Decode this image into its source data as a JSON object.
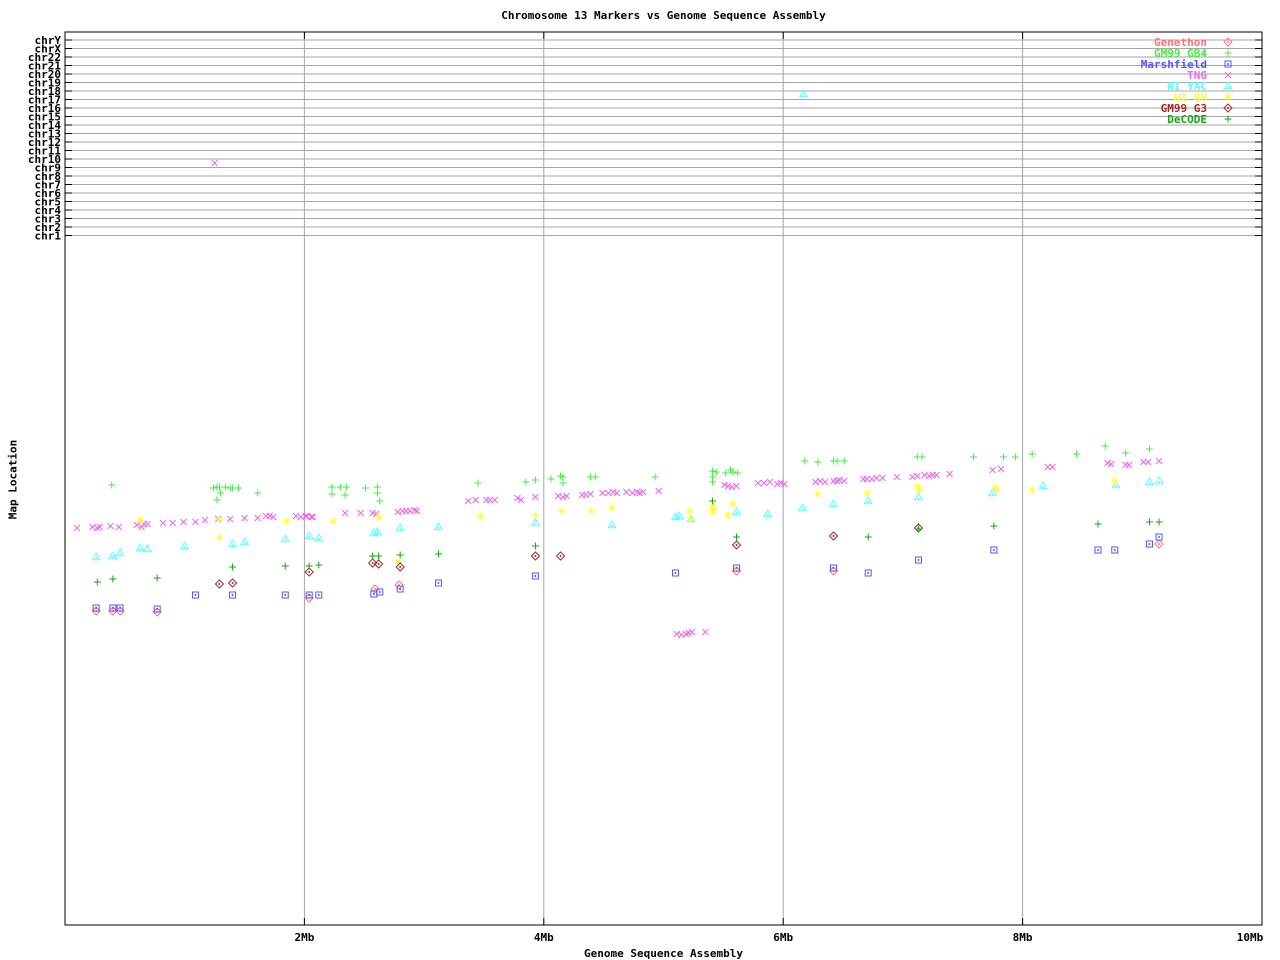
{
  "title": "Chromosome 13 Markers vs Genome Sequence Assembly",
  "chart_data": {
    "type": "scatter",
    "title": "Chromosome 13 Markers vs Genome Sequence Assembly",
    "xlabel": "Genome Sequence Assembly",
    "ylabel": "Map Location",
    "x_axis": {
      "range_mb": [
        0,
        10
      ],
      "ticks": [
        {
          "value": 2,
          "label": "2Mb"
        },
        {
          "value": 4,
          "label": "4Mb"
        },
        {
          "value": 6,
          "label": "6Mb"
        },
        {
          "value": 8,
          "label": "8Mb"
        },
        {
          "value": 10,
          "label": "10Mb"
        }
      ],
      "gridlines_at": [
        2,
        4,
        6,
        8
      ]
    },
    "y_axis": {
      "numeric_scale_shown": false,
      "chromosome_rows": [
        "chrY",
        "chrX",
        "chr22",
        "chr21",
        "chr20",
        "chr19",
        "chr18",
        "chr17",
        "chr16",
        "chr15",
        "chr14",
        "chr13",
        "chr12",
        "chr11",
        "chr10",
        "chr9",
        "chr8",
        "chr7",
        "chr6",
        "chr5",
        "chr4",
        "chr3",
        "chr2",
        "chr1"
      ]
    },
    "legend": {
      "position": "top-right-inside",
      "entries": [
        "Genethon",
        "GM99 GB4",
        "Marshfield",
        "TNG",
        "WI YAC",
        "WI RH",
        "GM99 G3",
        "DeCODE"
      ]
    },
    "grid": true,
    "point_format": "[x_Mb, y_screen_px]",
    "series": [
      {
        "name": "Genethon",
        "marker": "open-diamond",
        "color": "#ff7373",
        "points": [
          [
            0.26,
            611
          ],
          [
            0.4,
            611
          ],
          [
            0.46,
            611
          ],
          [
            0.77,
            612
          ],
          [
            2.04,
            598
          ],
          [
            2.59,
            589
          ],
          [
            2.79,
            585
          ],
          [
            5.61,
            571
          ],
          [
            6.42,
            571
          ],
          [
            9.14,
            544
          ]
        ]
      },
      {
        "name": "GM99 GB4",
        "marker": "plus",
        "color": "#44ee44",
        "points": [
          [
            0.39,
            485
          ],
          [
            1.24,
            488
          ],
          [
            1.27,
            487
          ],
          [
            1.29,
            487
          ],
          [
            1.3,
            493
          ],
          [
            1.27,
            500
          ],
          [
            1.34,
            487
          ],
          [
            1.38,
            488
          ],
          [
            1.4,
            488
          ],
          [
            1.45,
            488
          ],
          [
            1.61,
            493
          ],
          [
            2.23,
            487
          ],
          [
            2.3,
            487
          ],
          [
            2.35,
            487
          ],
          [
            2.23,
            494
          ],
          [
            2.34,
            495
          ],
          [
            2.51,
            488
          ],
          [
            2.61,
            487
          ],
          [
            2.61,
            493
          ],
          [
            2.63,
            501
          ],
          [
            3.45,
            483
          ],
          [
            3.85,
            482
          ],
          [
            3.93,
            480
          ],
          [
            4.06,
            479
          ],
          [
            4.14,
            476
          ],
          [
            4.16,
            477
          ],
          [
            4.16,
            483
          ],
          [
            4.39,
            477
          ],
          [
            4.43,
            477
          ],
          [
            4.93,
            477
          ],
          [
            5.41,
            471
          ],
          [
            5.44,
            472
          ],
          [
            5.41,
            477
          ],
          [
            5.41,
            482
          ],
          [
            5.52,
            473
          ],
          [
            5.56,
            470
          ],
          [
            5.58,
            472
          ],
          [
            5.62,
            473
          ],
          [
            6.18,
            461
          ],
          [
            6.29,
            462
          ],
          [
            6.42,
            461
          ],
          [
            6.45,
            461
          ],
          [
            6.51,
            461
          ],
          [
            7.12,
            457
          ],
          [
            7.16,
            457
          ],
          [
            7.59,
            457
          ],
          [
            7.84,
            457
          ],
          [
            7.94,
            457
          ],
          [
            8.08,
            454
          ],
          [
            8.45,
            454
          ],
          [
            8.69,
            446
          ],
          [
            8.86,
            453
          ],
          [
            9.06,
            449
          ]
        ]
      },
      {
        "name": "Marshfield",
        "marker": "open-square-dot",
        "color": "#5555ff",
        "points": [
          [
            0.26,
            608
          ],
          [
            0.4,
            608
          ],
          [
            0.46,
            608
          ],
          [
            0.77,
            609
          ],
          [
            1.09,
            595
          ],
          [
            1.4,
            595
          ],
          [
            1.84,
            595
          ],
          [
            2.04,
            595
          ],
          [
            2.12,
            595
          ],
          [
            2.58,
            594
          ],
          [
            2.63,
            592
          ],
          [
            2.8,
            589
          ],
          [
            3.12,
            583
          ],
          [
            3.93,
            576
          ],
          [
            5.1,
            573
          ],
          [
            5.61,
            568
          ],
          [
            6.42,
            568
          ],
          [
            6.71,
            573
          ],
          [
            7.13,
            560
          ],
          [
            7.76,
            550
          ],
          [
            8.63,
            550
          ],
          [
            8.77,
            550
          ],
          [
            9.06,
            544
          ],
          [
            9.14,
            537
          ]
        ]
      },
      {
        "name": "TNG",
        "marker": "cross",
        "color": "#ee66ee",
        "points": [
          [
            0.1,
            528
          ],
          [
            0.23,
            527
          ],
          [
            0.27,
            528
          ],
          [
            0.29,
            527
          ],
          [
            0.38,
            526
          ],
          [
            0.45,
            527
          ],
          [
            0.6,
            525
          ],
          [
            0.64,
            527
          ],
          [
            0.66,
            524
          ],
          [
            0.69,
            524
          ],
          [
            0.82,
            523
          ],
          [
            0.9,
            523
          ],
          [
            0.99,
            522
          ],
          [
            1.09,
            522
          ],
          [
            1.17,
            520
          ],
          [
            1.28,
            519
          ],
          [
            1.38,
            519
          ],
          [
            1.5,
            518
          ],
          [
            1.61,
            518
          ],
          [
            1.68,
            516
          ],
          [
            1.71,
            516
          ],
          [
            1.74,
            517
          ],
          [
            1.93,
            516
          ],
          [
            1.97,
            517
          ],
          [
            2.01,
            516
          ],
          [
            2.02,
            516
          ],
          [
            2.06,
            517
          ],
          [
            2.07,
            517
          ],
          [
            2.34,
            513
          ],
          [
            2.47,
            513
          ],
          [
            2.57,
            513
          ],
          [
            2.6,
            514
          ],
          [
            2.78,
            512
          ],
          [
            2.82,
            511
          ],
          [
            2.85,
            511
          ],
          [
            2.88,
            511
          ],
          [
            2.92,
            510
          ],
          [
            2.94,
            511
          ],
          [
            3.37,
            501
          ],
          [
            3.43,
            500
          ],
          [
            3.52,
            500
          ],
          [
            3.55,
            500
          ],
          [
            3.59,
            500
          ],
          [
            3.78,
            498
          ],
          [
            3.81,
            500
          ],
          [
            3.93,
            497
          ],
          [
            4.12,
            496
          ],
          [
            4.16,
            497
          ],
          [
            4.19,
            496
          ],
          [
            4.32,
            495
          ],
          [
            4.35,
            495
          ],
          [
            4.39,
            494
          ],
          [
            4.49,
            493
          ],
          [
            4.54,
            493
          ],
          [
            4.58,
            492
          ],
          [
            4.61,
            493
          ],
          [
            4.69,
            492
          ],
          [
            4.74,
            493
          ],
          [
            4.78,
            492
          ],
          [
            4.8,
            493
          ],
          [
            4.83,
            492
          ],
          [
            4.96,
            491
          ],
          [
            5.51,
            485
          ],
          [
            5.54,
            486
          ],
          [
            5.57,
            487
          ],
          [
            5.61,
            486
          ],
          [
            5.79,
            483
          ],
          [
            5.84,
            483
          ],
          [
            5.89,
            482
          ],
          [
            5.95,
            484
          ],
          [
            5.98,
            483
          ],
          [
            6.01,
            484
          ],
          [
            6.27,
            482
          ],
          [
            6.31,
            481
          ],
          [
            6.35,
            482
          ],
          [
            6.42,
            481
          ],
          [
            6.45,
            481
          ],
          [
            6.47,
            480
          ],
          [
            6.51,
            481
          ],
          [
            6.67,
            479
          ],
          [
            6.7,
            479
          ],
          [
            6.74,
            479
          ],
          [
            6.78,
            478
          ],
          [
            6.83,
            478
          ],
          [
            6.95,
            477
          ],
          [
            7.08,
            477
          ],
          [
            7.12,
            476
          ],
          [
            7.18,
            475
          ],
          [
            7.22,
            476
          ],
          [
            7.25,
            475
          ],
          [
            7.28,
            475
          ],
          [
            7.39,
            474
          ],
          [
            7.75,
            470
          ],
          [
            7.82,
            469
          ],
          [
            8.21,
            467
          ],
          [
            8.25,
            467
          ],
          [
            8.71,
            463
          ],
          [
            8.74,
            464
          ],
          [
            8.86,
            465
          ],
          [
            8.89,
            465
          ],
          [
            9.01,
            462
          ],
          [
            9.05,
            462
          ],
          [
            9.14,
            461
          ],
          [
            1.25,
            163
          ],
          [
            5.11,
            634
          ],
          [
            5.15,
            635
          ],
          [
            5.19,
            634
          ],
          [
            5.21,
            633
          ],
          [
            5.24,
            632
          ],
          [
            5.35,
            632
          ]
        ]
      },
      {
        "name": "WI YAC",
        "marker": "open-triangle-dot",
        "color": "#55ffff",
        "points": [
          [
            0.26,
            557
          ],
          [
            0.4,
            556
          ],
          [
            0.46,
            553
          ],
          [
            0.63,
            548
          ],
          [
            0.69,
            549
          ],
          [
            1.0,
            546
          ],
          [
            1.4,
            544
          ],
          [
            1.5,
            542
          ],
          [
            1.84,
            539
          ],
          [
            2.04,
            536
          ],
          [
            2.12,
            538
          ],
          [
            2.58,
            533
          ],
          [
            2.61,
            532
          ],
          [
            2.8,
            528
          ],
          [
            3.12,
            527
          ],
          [
            3.93,
            523
          ],
          [
            4.57,
            525
          ],
          [
            5.1,
            517
          ],
          [
            5.13,
            516
          ],
          [
            5.23,
            519
          ],
          [
            5.61,
            512
          ],
          [
            5.87,
            514
          ],
          [
            6.16,
            508
          ],
          [
            6.42,
            504
          ],
          [
            6.71,
            501
          ],
          [
            7.13,
            497
          ],
          [
            7.75,
            493
          ],
          [
            8.17,
            486
          ],
          [
            8.78,
            485
          ],
          [
            9.06,
            482
          ],
          [
            9.14,
            481
          ],
          [
            6.17,
            94
          ]
        ]
      },
      {
        "name": "WI RH",
        "marker": "star",
        "color": "#ffff33",
        "points": [
          [
            0.63,
            520
          ],
          [
            1.29,
            519
          ],
          [
            1.29,
            537
          ],
          [
            1.85,
            521
          ],
          [
            2.24,
            521
          ],
          [
            2.62,
            517
          ],
          [
            2.78,
            562
          ],
          [
            3.47,
            516
          ],
          [
            3.93,
            515
          ],
          [
            4.15,
            511
          ],
          [
            4.4,
            511
          ],
          [
            4.57,
            508
          ],
          [
            5.22,
            511
          ],
          [
            5.23,
            519
          ],
          [
            5.41,
            506
          ],
          [
            5.42,
            509
          ],
          [
            5.41,
            512
          ],
          [
            5.54,
            515
          ],
          [
            5.58,
            504
          ],
          [
            6.29,
            494
          ],
          [
            6.7,
            493
          ],
          [
            7.12,
            486
          ],
          [
            7.13,
            488
          ],
          [
            7.14,
            490
          ],
          [
            7.77,
            487
          ],
          [
            7.79,
            490
          ],
          [
            8.08,
            490
          ],
          [
            8.77,
            481
          ]
        ]
      },
      {
        "name": "GM99 G3",
        "marker": "open-diamond-dot",
        "color": "#a52828",
        "points": [
          [
            1.29,
            584
          ],
          [
            1.4,
            583
          ],
          [
            2.04,
            572
          ],
          [
            2.57,
            563
          ],
          [
            2.62,
            564
          ],
          [
            2.8,
            567
          ],
          [
            3.93,
            556
          ],
          [
            4.14,
            556
          ],
          [
            5.61,
            545
          ],
          [
            6.42,
            536
          ],
          [
            7.13,
            528
          ]
        ]
      },
      {
        "name": "DeCODE",
        "marker": "plus",
        "color": "#11aa11",
        "points": [
          [
            0.27,
            582
          ],
          [
            0.4,
            579
          ],
          [
            0.77,
            578
          ],
          [
            1.4,
            567
          ],
          [
            1.84,
            566
          ],
          [
            2.04,
            566
          ],
          [
            2.12,
            565
          ],
          [
            2.57,
            556
          ],
          [
            2.62,
            556
          ],
          [
            2.8,
            555
          ],
          [
            3.12,
            554
          ],
          [
            3.93,
            546
          ],
          [
            5.41,
            501
          ],
          [
            5.61,
            537
          ],
          [
            6.71,
            537
          ],
          [
            7.13,
            529
          ],
          [
            7.76,
            526
          ],
          [
            8.63,
            524
          ],
          [
            9.06,
            522
          ],
          [
            9.14,
            522
          ]
        ]
      }
    ],
    "colors": {
      "grid_gray": "#a6a6a6",
      "axis_black": "#000000"
    }
  }
}
